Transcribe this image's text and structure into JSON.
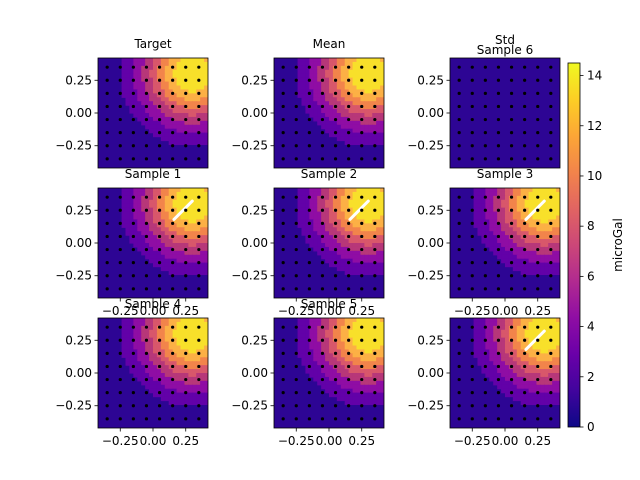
{
  "chart_data": {
    "type": "contour-grid",
    "layout": {
      "rows": 3,
      "cols": 3
    },
    "x_ticks": [
      -0.25,
      0.0,
      0.25
    ],
    "x_tick_labels": [
      "−0.25",
      "0.00",
      "0.25"
    ],
    "y_ticks": [
      0.25,
      0.0,
      -0.25
    ],
    "y_tick_labels": [
      "0.25",
      "0.00",
      "−0.25"
    ],
    "xlim": [
      -0.42,
      0.42
    ],
    "ylim": [
      -0.42,
      0.42
    ],
    "stations": {
      "x": [
        -0.35,
        -0.25,
        -0.15,
        -0.05,
        0.05,
        0.15,
        0.25,
        0.35
      ],
      "y": [
        -0.35,
        -0.25,
        -0.15,
        -0.05,
        0.05,
        0.15,
        0.25,
        0.35
      ]
    },
    "field": {
      "center_x": 0.3,
      "center_y": 0.3,
      "peak": 16,
      "scale": 0.27
    },
    "levels": [
      0,
      2,
      4,
      6,
      8,
      10,
      12,
      14
    ],
    "level_colors": [
      "#2d0594",
      "#6201a8",
      "#8f0da4",
      "#b73779",
      "#d8576b",
      "#f2844b",
      "#fcb045",
      "#f8e02a"
    ],
    "panels": [
      {
        "title": "Target",
        "kind": "field",
        "x_axis": false,
        "streak": false
      },
      {
        "title": "Mean",
        "kind": "field",
        "x_axis": false,
        "streak": false
      },
      {
        "title": "Std",
        "subtitle": "Sample 6",
        "kind": "flat",
        "x_axis": false,
        "streak": false
      },
      {
        "title": "Sample 1",
        "kind": "field",
        "x_axis": true,
        "streak": true
      },
      {
        "title": "Sample 2",
        "kind": "field",
        "x_axis": true,
        "streak": true
      },
      {
        "title": "Sample 3",
        "kind": "field",
        "x_axis": true,
        "streak": true
      },
      {
        "title": "Sample 4",
        "kind": "field",
        "x_axis": true,
        "streak": false
      },
      {
        "title": "Sample 5",
        "kind": "field",
        "x_axis": true,
        "streak": false
      },
      {
        "title": "",
        "kind": "field",
        "x_axis": true,
        "streak": true
      }
    ],
    "colorbar": {
      "label": "microGal",
      "ticks": [
        0,
        2,
        4,
        6,
        8,
        10,
        12,
        14
      ],
      "range": [
        0,
        14.5
      ],
      "stops": [
        "#0d0887",
        "#41049d",
        "#6a00a8",
        "#8f0da4",
        "#b12a90",
        "#cc4778",
        "#e16462",
        "#f2844b",
        "#fca636",
        "#fcce25",
        "#f0f921"
      ]
    }
  }
}
